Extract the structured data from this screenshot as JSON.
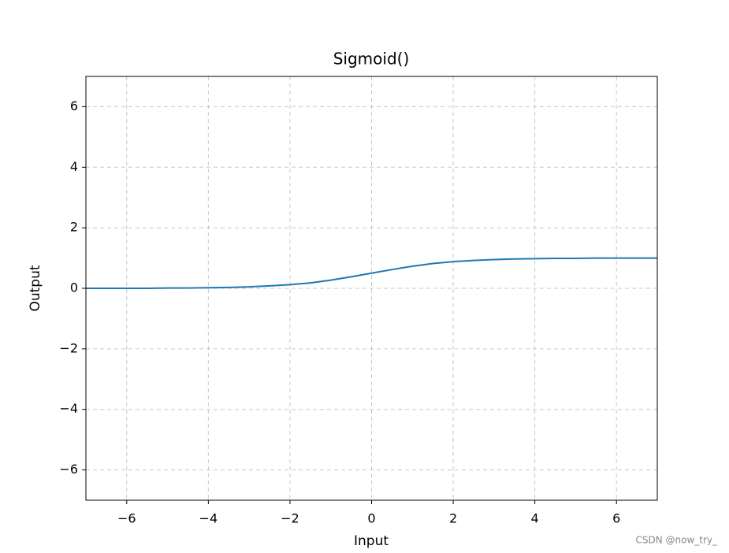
{
  "chart_data": {
    "type": "line",
    "title": "Sigmoid()",
    "x_label": "Input",
    "y_label": "Output",
    "x": [
      -7,
      -6.5,
      -6,
      -5.5,
      -5,
      -4.5,
      -4,
      -3.5,
      -3,
      -2.5,
      -2,
      -1.5,
      -1,
      -0.5,
      0,
      0.5,
      1,
      1.5,
      2,
      2.5,
      3,
      3.5,
      4,
      4.5,
      5,
      5.5,
      6,
      6.5,
      7
    ],
    "series": [
      {
        "color": "#1f77b4",
        "values": [
          0,
          0,
          0,
          0,
          0.01,
          0.01,
          0.02,
          0.03,
          0.05,
          0.08,
          0.12,
          0.18,
          0.27,
          0.38,
          0.5,
          0.62,
          0.73,
          0.82,
          0.88,
          0.92,
          0.95,
          0.97,
          0.98,
          0.99,
          0.99,
          1,
          1,
          1,
          1
        ]
      }
    ],
    "xlim": [
      -7,
      7
    ],
    "ylim": [
      -7,
      7
    ],
    "xticks": [
      {
        "value": -6,
        "label": "−6"
      },
      {
        "value": -4,
        "label": "−4"
      },
      {
        "value": -2,
        "label": "−2"
      },
      0,
      2,
      4,
      6
    ],
    "yticks": [
      {
        "value": -6,
        "label": "−6"
      },
      {
        "value": -4,
        "label": "−4"
      },
      {
        "value": -2,
        "label": "−2"
      },
      0,
      2,
      4,
      6
    ],
    "grid": true,
    "watermark": "CSDN @now_try_"
  }
}
